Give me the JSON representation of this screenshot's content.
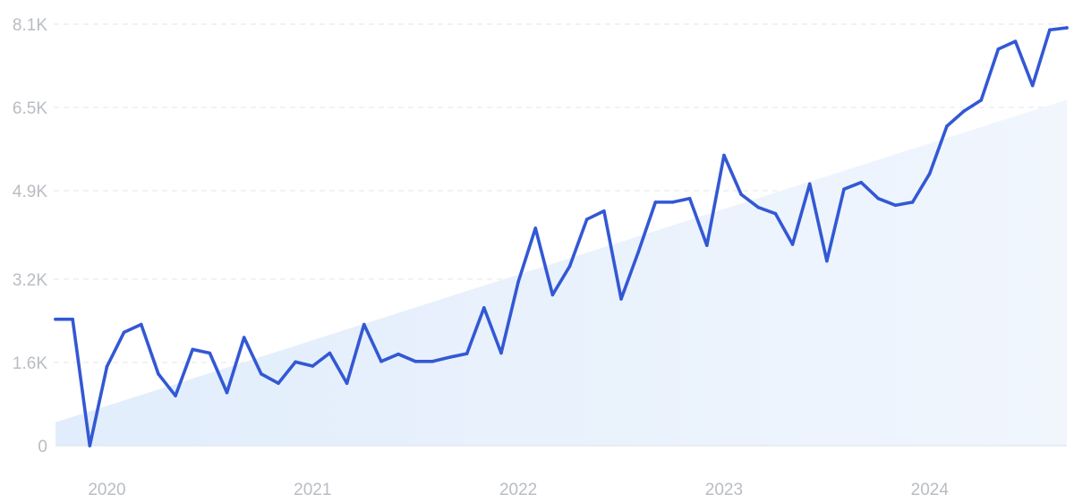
{
  "chart_data": {
    "type": "line",
    "title": "",
    "xlabel": "",
    "ylabel": "",
    "y_ticks": [
      {
        "value": 0,
        "label": "0"
      },
      {
        "value": 1600,
        "label": "1.6K"
      },
      {
        "value": 3200,
        "label": "3.2K"
      },
      {
        "value": 4900,
        "label": "4.9K"
      },
      {
        "value": 6500,
        "label": "6.5K"
      },
      {
        "value": 8100,
        "label": "8.1K"
      }
    ],
    "ylim": [
      0,
      8100
    ],
    "xlim": [
      "2019-10",
      "2024-09"
    ],
    "x_ticks": [
      {
        "value": "2020-01",
        "label": "2020"
      },
      {
        "value": "2021-01",
        "label": "2021"
      },
      {
        "value": "2022-01",
        "label": "2022"
      },
      {
        "value": "2023-01",
        "label": "2023"
      },
      {
        "value": "2024-01",
        "label": "2024"
      }
    ],
    "grid": true,
    "legend": "none",
    "colors": {
      "line": "#3358d4",
      "trend_fill": "#e4effd"
    },
    "trend": {
      "start": {
        "x": "2019-10",
        "y": 450
      },
      "end": {
        "x": "2024-09",
        "y": 6650
      }
    },
    "series": [
      {
        "x": [
          "2019-10",
          "2019-11",
          "2019-12",
          "2020-01",
          "2020-02",
          "2020-03",
          "2020-04",
          "2020-05",
          "2020-06",
          "2020-07",
          "2020-08",
          "2020-09",
          "2020-10",
          "2020-11",
          "2020-12",
          "2021-01",
          "2021-02",
          "2021-03",
          "2021-04",
          "2021-05",
          "2021-06",
          "2021-07",
          "2021-08",
          "2021-09",
          "2021-10",
          "2021-11",
          "2021-12",
          "2022-01",
          "2022-02",
          "2022-03",
          "2022-04",
          "2022-05",
          "2022-06",
          "2022-07",
          "2022-08",
          "2022-09",
          "2022-10",
          "2022-11",
          "2022-12",
          "2023-01",
          "2023-02",
          "2023-03",
          "2023-04",
          "2023-05",
          "2023-06",
          "2023-07",
          "2023-08",
          "2023-09",
          "2023-10",
          "2023-11",
          "2023-12",
          "2024-01",
          "2024-02",
          "2024-03",
          "2024-04",
          "2024-05",
          "2024-06",
          "2024-07",
          "2024-08",
          "2024-09"
        ],
        "values": [
          2430,
          2430,
          0,
          1520,
          2180,
          2330,
          1380,
          960,
          1850,
          1780,
          1020,
          2080,
          1380,
          1200,
          1610,
          1530,
          1780,
          1200,
          2330,
          1620,
          1760,
          1620,
          1620,
          1700,
          1770,
          2650,
          1780,
          3150,
          4180,
          2900,
          3450,
          4350,
          4510,
          2820,
          3720,
          4680,
          4680,
          4750,
          3850,
          5580,
          4830,
          4580,
          4460,
          3870,
          5030,
          3550,
          4930,
          5060,
          4750,
          4620,
          4680,
          5230,
          6140,
          6430,
          6640,
          7620,
          7770,
          6920,
          7990,
          8030
        ]
      }
    ]
  }
}
